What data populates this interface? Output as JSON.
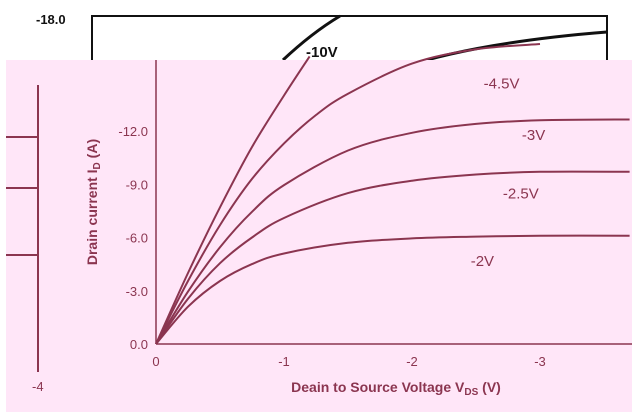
{
  "colors": {
    "panel_background": "#ffe6f8",
    "curve_color": "#8b3550",
    "back_curve_color": "#111111",
    "text_color": "#8b3550"
  },
  "back_layer": {
    "top_tick_label": "-18.0",
    "curve_label": "-10V"
  },
  "left_fragment": {
    "tick_label": "-4"
  },
  "chart_data": {
    "type": "line",
    "title": "",
    "xlabel": "Deain to Source Voltage V",
    "xlabel_subscript": "DS",
    "xlabel_unit": " (V)",
    "ylabel": "Drain current I",
    "ylabel_subscript": "D",
    "ylabel_unit": " (A)",
    "xlim": [
      0,
      -3.7
    ],
    "ylim": [
      0,
      -18
    ],
    "x_ticks": [
      {
        "value": 0,
        "label": "0"
      },
      {
        "value": -1,
        "label": "-1"
      },
      {
        "value": -2,
        "label": "-2"
      },
      {
        "value": -3,
        "label": "-3"
      }
    ],
    "y_ticks": [
      {
        "value": 0,
        "label": "0.0"
      },
      {
        "value": -3,
        "label": "-3.0"
      },
      {
        "value": -6,
        "label": "-6.0"
      },
      {
        "value": -9,
        "label": "-9.0"
      },
      {
        "value": -12,
        "label": "-12.0"
      }
    ],
    "series": [
      {
        "name": "-2V",
        "x": [
          0,
          -0.25,
          -0.5,
          -0.75,
          -1,
          -1.5,
          -2,
          -2.5,
          -3,
          -3.7
        ],
        "y": [
          0,
          -2.1,
          -3.55,
          -4.5,
          -5.1,
          -5.7,
          -5.95,
          -6.05,
          -6.1,
          -6.1
        ]
      },
      {
        "name": "-2.5V",
        "x": [
          0,
          -0.25,
          -0.5,
          -0.75,
          -1,
          -1.5,
          -2,
          -2.5,
          -3,
          -3.7
        ],
        "y": [
          0,
          -2.55,
          -4.55,
          -6.0,
          -7.1,
          -8.5,
          -9.2,
          -9.55,
          -9.7,
          -9.7
        ]
      },
      {
        "name": "-3V",
        "x": [
          0,
          -0.25,
          -0.5,
          -0.75,
          -1,
          -1.5,
          -2,
          -2.5,
          -3,
          -3.7
        ],
        "y": [
          0,
          -2.95,
          -5.45,
          -7.45,
          -8.95,
          -10.9,
          -11.9,
          -12.4,
          -12.6,
          -12.65
        ]
      },
      {
        "name": "-4.5V",
        "x": [
          0,
          -0.25,
          -0.5,
          -0.75,
          -1,
          -1.25,
          -1.5,
          -2,
          -2.5,
          -3
        ],
        "y": [
          0,
          -3.55,
          -6.7,
          -9.3,
          -11.3,
          -12.9,
          -14.1,
          -15.8,
          -16.6,
          -16.9
        ]
      },
      {
        "name": "",
        "x": [
          0,
          -0.25,
          -0.5,
          -0.75,
          -1,
          -1.2
        ],
        "y": [
          0,
          -4.0,
          -7.7,
          -11.1,
          -14.0,
          -16.2
        ]
      }
    ],
    "curve_labels": [
      {
        "text": "-4.5V",
        "x": -2.7,
        "y": -14.4
      },
      {
        "text": "-3V",
        "x": -2.95,
        "y": -11.5
      },
      {
        "text": "-2.5V",
        "x": -2.85,
        "y": -8.2
      },
      {
        "text": "-2V",
        "x": -2.55,
        "y": -4.4
      }
    ]
  }
}
